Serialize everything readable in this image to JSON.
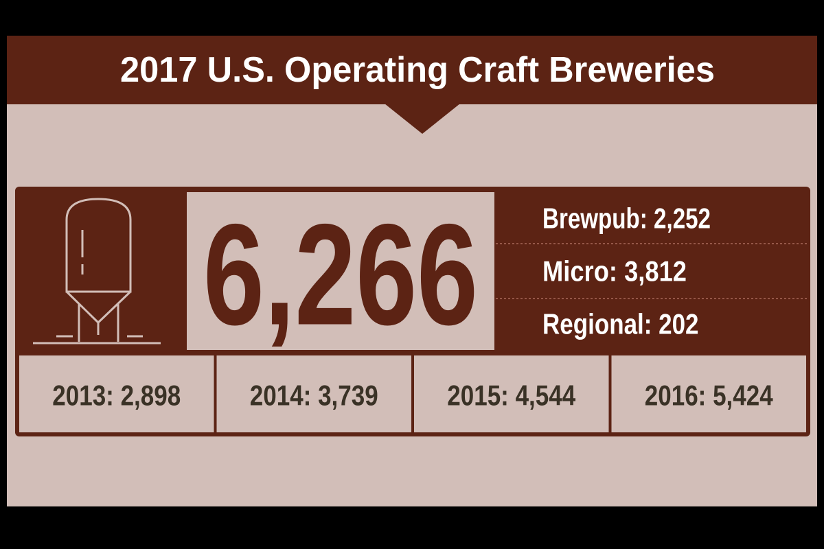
{
  "header": {
    "title": "2017  U.S. Operating Craft Breweries"
  },
  "total": "6,266",
  "breakdown": [
    "Brewpub: 2,252",
    "Micro: 3,812",
    "Regional: 202"
  ],
  "history": [
    "2013: 2,898",
    "2014: 3,739",
    "2015: 4,544",
    "2016: 5,424"
  ]
}
